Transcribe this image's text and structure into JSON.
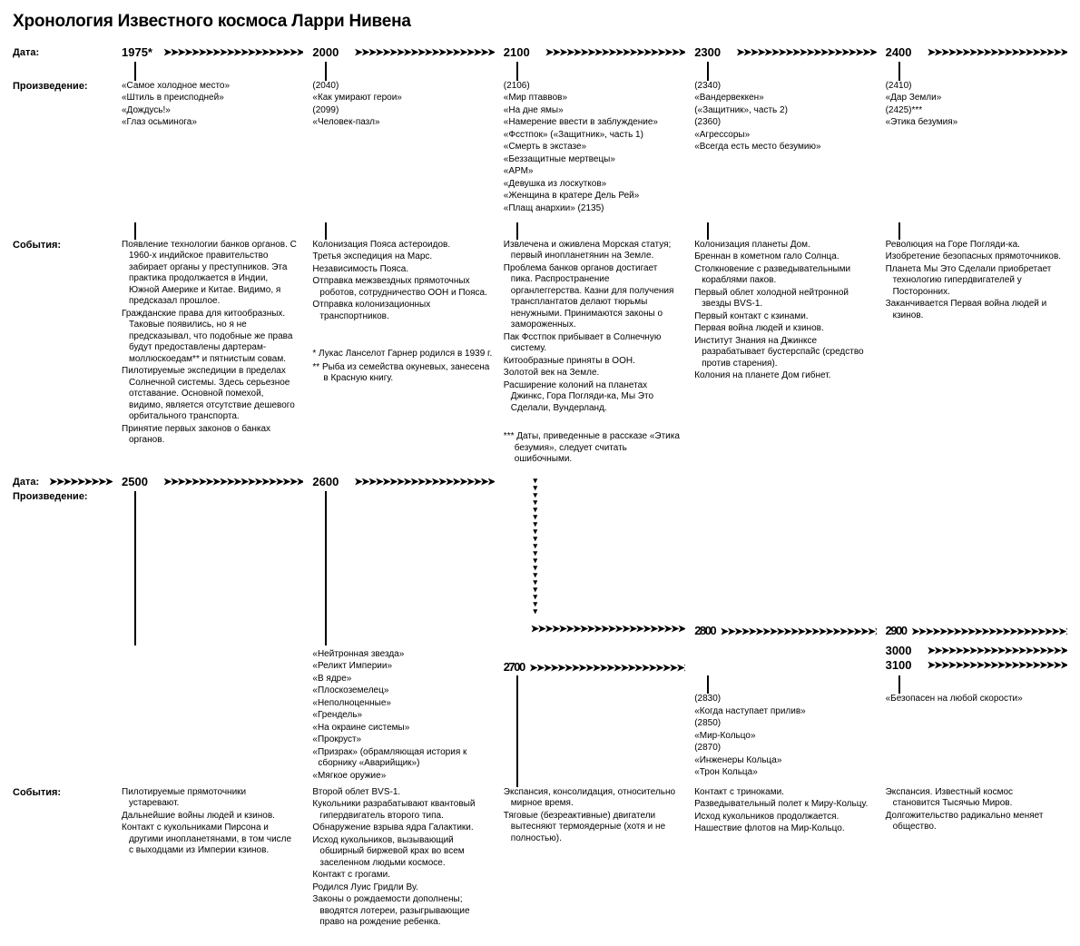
{
  "title": "Хронология Известного космоса Ларри Нивена",
  "labels": {
    "date": "Дата:",
    "work": "Произведение:",
    "events": "События:"
  },
  "arrow_glyph": "➤➤➤➤➤➤➤➤➤➤➤➤➤➤➤➤➤➤➤➤➤➤➤➤➤➤➤➤➤➤➤➤➤➤",
  "row1": [
    {
      "year": "1975*",
      "works": [
        "«Самое холодное место»",
        "«Штиль в преисподней»",
        "«Дождусь!»",
        "«Глаз осьминога»"
      ],
      "events": [
        "Появление технологии банков органов. С 1960-х индийское правительство забирает органы у преступников. Эта практика продолжается в Индии, Южной Америке и Китае. Видимо, я предсказал прошлое.",
        "Гражданские права для китообразных. Таковые появились, но я не предсказывал, что подобные же права будут предоставлены дартерам-моллюскоедам** и пятнистым совам.",
        "Пилотируемые экспедиции в пределах Солнечной системы. Здесь серьезное отставание. Основной помехой, видимо, является отсутствие дешевого орбитального транспорта.",
        "Принятие первых законов о банках органов."
      ]
    },
    {
      "year": "2000",
      "works": [
        "(2040)",
        "«Как умирают герои»",
        "(2099)",
        "«Человек-пазл»"
      ],
      "events": [
        "Колонизация Пояса астероидов.",
        "Третья экспедиция на Марс.",
        "Независимость Пояса.",
        "Отправка межзвездных прямоточных роботов, сотрудничество ООН и Пояса.",
        "Отправка колонизационных транспортников."
      ],
      "footnotes": [
        "*   Лукас Ланселот Гарнер родился в 1939 г.",
        "** Рыба из семейства окуневых, занесена в Красную книгу."
      ]
    },
    {
      "year": "2100",
      "works": [
        "(2106)",
        "«Мир птаввов»",
        "«На дне ямы»",
        "«Намерение ввести в заблуждение»",
        "«Фсстпок» («Защитник», часть 1)",
        "«Смерть в экстазе»",
        "«Беззащитные мертвецы»",
        "«АРМ»",
        "«Девушка из лоскутков»",
        "«Женщина в кратере Дель Рей»",
        "«Плащ анархии» (2135)"
      ],
      "events": [
        "Извлечена и оживлена Морская статуя; первый инопланетянин на Земле.",
        "Проблема банков органов достигает пика. Распространение органлеггерства. Казни для получения трансплантатов делают тюрьмы ненужными. Принимаются законы о замороженных.",
        "Пак Фсстпок прибывает в Солнечную систему.",
        "Китообразные приняты в ООН.",
        "Золотой век на Земле.",
        "Расширение колоний на планетах Джинкс, Гора Погляди-ка, Мы Это Сделали, Вундерланд."
      ],
      "footnotes": [
        "*** Даты, приведенные в рассказе «Этика безумия», следует считать ошибочными."
      ]
    },
    {
      "year": "2300",
      "works": [
        "(2340)",
        "«Вандервеккен»",
        "(«Защитник», часть 2)",
        "(2360)",
        "«Агрессоры»",
        "«Всегда есть место безумию»"
      ],
      "events": [
        "Колонизация планеты Дом.",
        "Бреннан в кометном гало Солнца.",
        "Столкновение с разведывательными кораблями паков.",
        "Первый облет холодной нейтронной звезды BVS-1.",
        "Первый контакт с кзинами.",
        "Первая война людей и кзинов.",
        "Институт Знания на Джинксе разрабатывает бустерспайс (средство против старения).",
        "Колония на планете Дом гибнет."
      ]
    },
    {
      "year": "2400",
      "works": [
        "(2410)",
        "«Дар Земли»",
        "(2425)***",
        "«Этика безумия»"
      ],
      "events": [
        "Революция на Горе Погляди-ка.",
        "Изобретение безопасных прямоточников.",
        "Планета Мы Это Сделали приобретает технологию гипердвигателей у Посторонних.",
        "Заканчивается Первая война людей и кзинов."
      ]
    }
  ],
  "row2a": [
    {
      "year": "2500",
      "works": []
    },
    {
      "year": "2600",
      "works": [
        "«Нейтронная звезда»",
        "«Реликт Империи»",
        "«В ядре»",
        "«Плоскоземелец»",
        "«Неполноценные»",
        "«Грендель»",
        "«На окраине системы»",
        "«Прокруст»",
        "«Призрак» (обрамляющая история к сборнику «Аварийщик»)",
        "«Мягкое оружие»"
      ]
    }
  ],
  "row2b": [
    {
      "year": "2700",
      "works": []
    },
    {
      "year": "2800",
      "works": [
        "(2830)",
        "«Когда наступает прилив»",
        "(2850)",
        "«Мир-Кольцо»",
        "(2870)",
        "«Инженеры Кольца»",
        "«Трон Кольца»"
      ]
    },
    {
      "year": "2900\n3000\n3100",
      "works": [
        "«Безопасен на любой скорости»"
      ],
      "multiyear": [
        "2900",
        "3000",
        "3100"
      ]
    }
  ],
  "row2_events": [
    {
      "events": [
        "Пилотируемые прямоточники устаревают.",
        "Дальнейшие войны людей и кзинов.",
        "Контакт с кукольниками Пирсона и другими инопланетянами, в том числе с выходцами из Империи кзинов."
      ]
    },
    {
      "events": [
        "Второй облет BVS-1.",
        "Кукольники разрабатывают квантовый гипердвигатель второго типа.",
        "Обнаружение взрыва ядра Галактики.",
        "Исход кукольников, вызывающий обширный биржевой крах во всем заселенном людьми космосе.",
        "Контакт с грогами.",
        "Родился Луис Гридли Ву.",
        "Законы о рождаемости дополнены; вводятся лотереи, разыгрывающие право на рождение ребенка."
      ]
    },
    {
      "events": [
        "Экспансия, консолидация, относительно мирное время.",
        "Тяговые (безреактивные) двигатели вытесняют термоядерные (хотя и не полностью)."
      ]
    },
    {
      "events": [
        "Контакт с триноками.",
        "Разведывательный полет к Миру-Кольцу.",
        "Исход кукольников продолжается.",
        "Нашествие флотов на Мир-Кольцо."
      ]
    },
    {
      "events": [
        "Экспансия. Известный космос становится Тысячью Миров.",
        "Долгожительство радикально меняет общество."
      ]
    }
  ],
  "colors": {
    "text": "#000000",
    "bg": "#ffffff"
  }
}
